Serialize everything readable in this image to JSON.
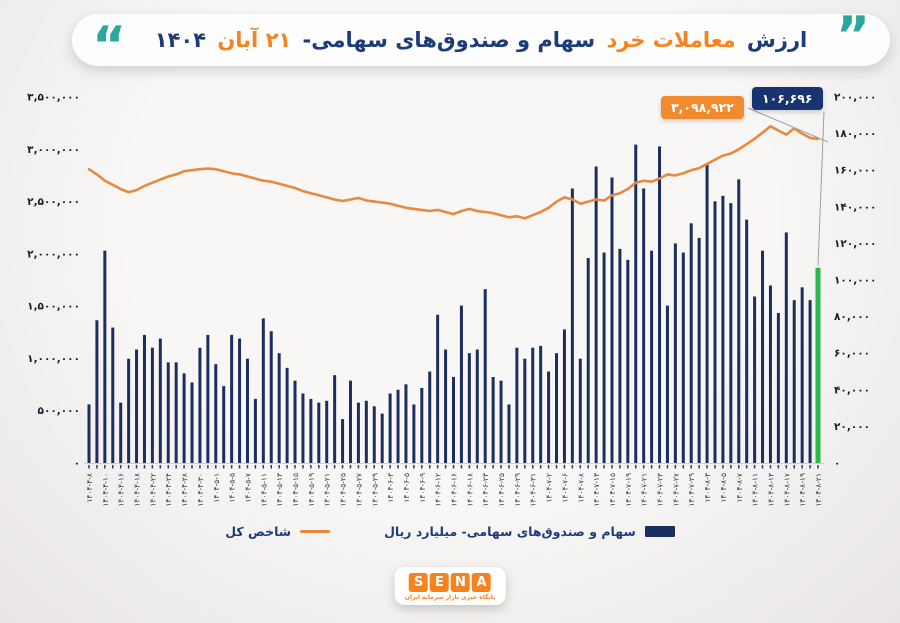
{
  "title": {
    "part_value": "ارزش",
    "part_retail": "معاملات خرد",
    "part_stocks": "سهام و صندوق‌های سهامی-",
    "part_day": "۲۱ آبان",
    "part_year": "۱۴۰۴"
  },
  "quotes": {
    "left_glyph": "“",
    "right_glyph": "”"
  },
  "colors": {
    "navy": "#1c2e5e",
    "title_navy": "#1e3c78",
    "orange": "#f5831f",
    "line_orange": "#e8893f",
    "teal": "#2ba79d",
    "green_last_bar": "#2db84d",
    "callout_orange_bg": "#f28a2e",
    "callout_navy_bg": "#173470",
    "axis_text": "#1b1b2f",
    "tick": "#2b3f72",
    "connector": "#9aa0a6"
  },
  "callouts": {
    "index_value": "۳,۰۹۸,۹۲۲",
    "trade_value": "۱۰۶,۶۹۶"
  },
  "legend": {
    "line_label": "شاخص کل",
    "bar_label": "سهام و صندوق‌های سهامی- میلیارد ریال"
  },
  "logo": {
    "letters": [
      "S",
      "E",
      "N",
      "A"
    ],
    "tagline": "پایگاه خبری بازار سرمایه ایران"
  },
  "chart_data": {
    "type": "bar+line combo",
    "title": "ارزش معاملات خرد سهام و صندوق‌های سهامی- ۲۱ آبان ۱۴۰۴",
    "bar_series_name": "سهام و صندوق‌های سهامی- میلیارد ریال",
    "line_series_name": "شاخص کل",
    "y_axis_left": {
      "max": 3500000,
      "labels": [
        "۳,۵۰۰,۰۰۰",
        "۳,۰۰۰,۰۰۰",
        "۲,۵۰۰,۰۰۰",
        "۲,۰۰۰,۰۰۰",
        "۱,۵۰۰,۰۰۰",
        "۱,۰۰۰,۰۰۰",
        "۵۰۰,۰۰۰",
        "۰"
      ]
    },
    "y_axis_right": {
      "max": 200000,
      "labels": [
        "۲۰۰,۰۰۰",
        "۱۸۰,۰۰۰",
        "۱۶۰,۰۰۰",
        "۱۴۰,۰۰۰",
        "۱۲۰,۰۰۰",
        "۱۰۰,۰۰۰",
        "۸۰,۰۰۰",
        "۶۰,۰۰۰",
        "۴۰,۰۰۰",
        "۲۰,۰۰۰",
        "۰"
      ]
    },
    "label_every": 2,
    "x_labels": [
      "۱۴۰۴-۴-۸",
      "۱۴۰۴-۴-۱۰",
      "۱۴۰۴-۴-۱۶",
      "۱۴۰۴-۴-۱۸",
      "۱۴۰۴-۴-۲۲",
      "۱۴۰۴-۴-۲۴",
      "۱۴۰۴-۴-۲۸",
      "۱۴۰۴-۴-۳۰",
      "۱۴۰۴-۵-۱",
      "۱۴۰۴-۵-۵",
      "۱۴۰۴-۵-۷",
      "۱۴۰۴-۵-۱۱",
      "۱۴۰۴-۵-۱۳",
      "۱۴۰۴-۵-۱۵",
      "۱۴۰۴-۵-۱۹",
      "۱۴۰۴-۵-۲۱",
      "۱۴۰۴-۵-۲۵",
      "۱۴۰۴-۵-۲۷",
      "۱۴۰۴-۵-۲۹",
      "۱۴۰۴-۶-۳",
      "۱۴۰۴-۶-۵",
      "۱۴۰۴-۶-۹",
      "۱۴۰۴-۶-۱۲",
      "۱۴۰۴-۶-۱۶",
      "۱۴۰۴-۶-۱۸",
      "۱۴۰۴-۶-۲۳",
      "۱۴۰۴-۶-۲۵",
      "۱۴۰۴-۶-۲۹",
      "۱۴۰۴-۶-۳۱",
      "۱۴۰۴-۷-۲",
      "۱۴۰۴-۷-۶",
      "۱۴۰۴-۷-۸",
      "۱۴۰۴-۷-۱۳",
      "۱۴۰۴-۷-۱۵",
      "۱۴۰۴-۷-۱۹",
      "۱۴۰۴-۷-۲۱",
      "۱۴۰۴-۷-۲۳",
      "۱۴۰۴-۷-۲۷",
      "۱۴۰۴-۷-۲۹",
      "۱۴۰۴-۸-۳",
      "۱۴۰۴-۸-۵",
      "۱۴۰۴-۸-۷",
      "۱۴۰۴-۸-۱۱",
      "۱۴۰۴-۸-۱۳",
      "۱۴۰۴-۸-۱۷",
      "۱۴۰۴-۸-۱۹",
      "۱۴۰۴-۸-۲۱"
    ],
    "bar_values": [
      32000,
      78000,
      116000,
      74000,
      33000,
      57000,
      62000,
      70000,
      63000,
      68000,
      55000,
      55000,
      49000,
      44000,
      63000,
      70000,
      54000,
      42000,
      70000,
      68000,
      57000,
      35000,
      79000,
      72000,
      60000,
      52000,
      45000,
      38000,
      35000,
      33000,
      34000,
      48000,
      24000,
      45000,
      33000,
      34000,
      31000,
      27000,
      38000,
      40000,
      43000,
      32000,
      41000,
      50000,
      81000,
      62000,
      47000,
      86000,
      60000,
      62000,
      95000,
      47000,
      45000,
      32000,
      63000,
      57000,
      63000,
      64000,
      50000,
      60000,
      73000,
      150000,
      57000,
      112000,
      162000,
      115000,
      156000,
      117000,
      111000,
      174000,
      150000,
      116000,
      173000,
      86000,
      120000,
      115000,
      131000,
      123000,
      163000,
      143000,
      146000,
      142000,
      155000,
      133000,
      91000,
      116000,
      97000,
      82000,
      126000,
      89000,
      96000,
      89000,
      106696
    ],
    "index_values": [
      2810000,
      2760000,
      2700000,
      2660000,
      2620000,
      2590000,
      2610000,
      2650000,
      2680000,
      2710000,
      2740000,
      2760000,
      2790000,
      2800000,
      2810000,
      2815000,
      2810000,
      2790000,
      2770000,
      2760000,
      2740000,
      2720000,
      2700000,
      2690000,
      2670000,
      2650000,
      2630000,
      2600000,
      2580000,
      2560000,
      2540000,
      2520000,
      2505000,
      2520000,
      2535000,
      2510000,
      2500000,
      2490000,
      2480000,
      2460000,
      2440000,
      2430000,
      2420000,
      2410000,
      2420000,
      2400000,
      2380000,
      2410000,
      2430000,
      2410000,
      2400000,
      2390000,
      2370000,
      2350000,
      2360000,
      2340000,
      2370000,
      2400000,
      2440000,
      2500000,
      2540000,
      2520000,
      2480000,
      2500000,
      2520000,
      2510000,
      2560000,
      2580000,
      2620000,
      2680000,
      2700000,
      2690000,
      2720000,
      2760000,
      2750000,
      2770000,
      2800000,
      2820000,
      2860000,
      2900000,
      2940000,
      2960000,
      3000000,
      3050000,
      3100000,
      3160000,
      3220000,
      3180000,
      3140000,
      3200000,
      3150000,
      3110000,
      3098922
    ],
    "last_bar_highlighted": true,
    "last_bar_value_label": "۱۰۶,۶۹۶",
    "last_index_value_label": "۳,۰۹۸,۹۲۲",
    "grid": false,
    "legend_position": "bottom"
  }
}
